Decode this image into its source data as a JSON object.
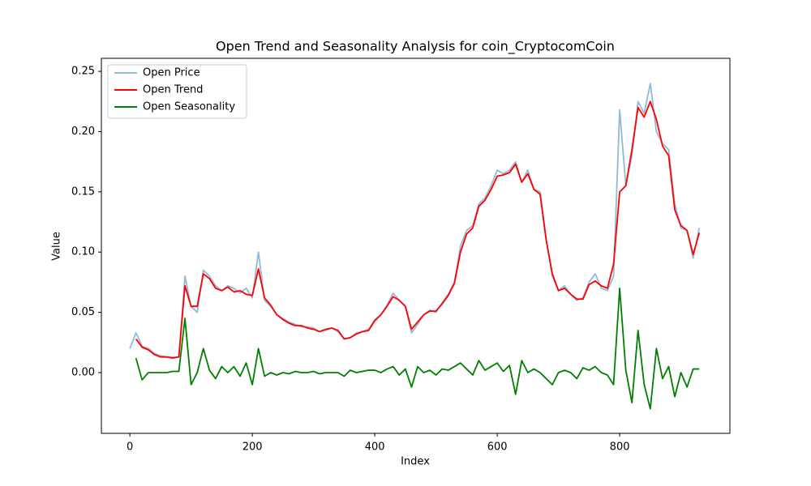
{
  "chart_data": {
    "type": "line",
    "title": "Open Trend and Seasonality Analysis for coin_CryptocomCoin",
    "x_label": "Index",
    "y_label": "Value",
    "x": [
      0,
      10,
      20,
      30,
      40,
      50,
      60,
      70,
      80,
      90,
      100,
      110,
      120,
      130,
      140,
      150,
      160,
      170,
      180,
      190,
      200,
      210,
      220,
      230,
      240,
      250,
      260,
      270,
      280,
      290,
      300,
      310,
      320,
      330,
      340,
      350,
      360,
      370,
      380,
      390,
      400,
      410,
      420,
      430,
      440,
      450,
      460,
      470,
      480,
      490,
      500,
      510,
      520,
      530,
      540,
      550,
      560,
      570,
      580,
      590,
      600,
      610,
      620,
      630,
      640,
      650,
      660,
      670,
      680,
      690,
      700,
      710,
      720,
      730,
      740,
      750,
      760,
      770,
      780,
      790,
      800,
      810,
      820,
      830,
      840,
      850,
      860,
      870,
      880,
      890,
      900,
      910,
      920,
      930
    ],
    "series": [
      {
        "name": "Open Price",
        "color": "#8fbbd9",
        "values": [
          0.02,
          0.033,
          0.022,
          0.02,
          0.016,
          0.014,
          0.013,
          0.013,
          0.013,
          0.08,
          0.055,
          0.05,
          0.085,
          0.08,
          0.072,
          0.068,
          0.072,
          0.07,
          0.066,
          0.07,
          0.062,
          0.1,
          0.06,
          0.055,
          0.048,
          0.045,
          0.042,
          0.04,
          0.038,
          0.038,
          0.037,
          0.034,
          0.035,
          0.037,
          0.034,
          0.028,
          0.029,
          0.033,
          0.034,
          0.036,
          0.044,
          0.048,
          0.056,
          0.066,
          0.06,
          0.055,
          0.033,
          0.04,
          0.048,
          0.052,
          0.05,
          0.058,
          0.065,
          0.075,
          0.105,
          0.118,
          0.122,
          0.14,
          0.145,
          0.155,
          0.168,
          0.165,
          0.168,
          0.175,
          0.158,
          0.168,
          0.152,
          0.15,
          0.11,
          0.08,
          0.068,
          0.072,
          0.065,
          0.06,
          0.062,
          0.075,
          0.082,
          0.07,
          0.068,
          0.08,
          0.218,
          0.155,
          0.18,
          0.225,
          0.215,
          0.24,
          0.2,
          0.19,
          0.185,
          0.14,
          0.12,
          0.118,
          0.095,
          0.12
        ]
      },
      {
        "name": "Open Trend",
        "color": "#ff0000",
        "values": [
          null,
          0.028,
          0.021,
          0.019,
          0.015,
          0.013,
          0.013,
          0.012,
          0.013,
          0.072,
          0.055,
          0.055,
          0.082,
          0.078,
          0.07,
          0.068,
          0.071,
          0.067,
          0.068,
          0.065,
          0.064,
          0.086,
          0.062,
          0.056,
          0.048,
          0.044,
          0.041,
          0.039,
          0.039,
          0.037,
          0.036,
          0.034,
          0.036,
          0.037,
          0.035,
          0.028,
          0.029,
          0.032,
          0.034,
          0.035,
          0.043,
          0.048,
          0.055,
          0.063,
          0.06,
          0.055,
          0.036,
          0.042,
          0.048,
          0.051,
          0.051,
          0.057,
          0.064,
          0.074,
          0.1,
          0.115,
          0.12,
          0.138,
          0.143,
          0.152,
          0.163,
          0.164,
          0.166,
          0.173,
          0.158,
          0.165,
          0.152,
          0.148,
          0.11,
          0.082,
          0.068,
          0.07,
          0.065,
          0.061,
          0.061,
          0.073,
          0.076,
          0.072,
          0.07,
          0.09,
          0.15,
          0.155,
          0.185,
          0.22,
          0.212,
          0.225,
          0.21,
          0.188,
          0.18,
          0.135,
          0.122,
          0.118,
          0.098,
          0.116
        ]
      },
      {
        "name": "Open Seasonality",
        "color": "#008000",
        "values": [
          null,
          0.012,
          -0.006,
          0.0,
          0.0,
          0.0,
          0.0,
          0.001,
          0.001,
          0.045,
          -0.01,
          0.0,
          0.02,
          0.002,
          -0.005,
          0.005,
          0.0,
          0.005,
          -0.003,
          0.008,
          -0.01,
          0.02,
          -0.003,
          0.0,
          -0.002,
          0.0,
          -0.001,
          0.001,
          0.0,
          0.0,
          0.001,
          -0.001,
          0.0,
          0.0,
          0.0,
          -0.003,
          0.002,
          0.0,
          0.001,
          0.002,
          0.002,
          0.0,
          0.003,
          0.005,
          -0.002,
          0.003,
          -0.012,
          0.005,
          0.0,
          0.002,
          -0.002,
          0.003,
          0.002,
          0.005,
          0.008,
          0.003,
          -0.002,
          0.01,
          0.002,
          0.005,
          0.008,
          0.001,
          0.006,
          -0.018,
          0.01,
          0.0,
          0.003,
          0.0,
          -0.005,
          -0.01,
          0.0,
          0.002,
          0.0,
          -0.005,
          0.004,
          0.002,
          0.005,
          0.0,
          -0.002,
          -0.01,
          0.07,
          0.002,
          -0.025,
          0.035,
          -0.01,
          -0.03,
          0.02,
          -0.005,
          0.005,
          -0.02,
          0.0,
          -0.012,
          0.003,
          0.003
        ]
      }
    ],
    "xlim": [
      -46.5,
      980
    ],
    "ylim": [
      -0.0504,
      0.2608
    ],
    "xticks": [
      0,
      200,
      400,
      600,
      800
    ],
    "yticks": [
      {
        "value": 0,
        "label": "0.00"
      },
      0.05,
      {
        "value": 0.1,
        "label": "0.10"
      },
      0.15,
      {
        "value": 0.2,
        "label": "0.20"
      },
      0.25
    ],
    "grid": false,
    "legend": "upper left"
  }
}
